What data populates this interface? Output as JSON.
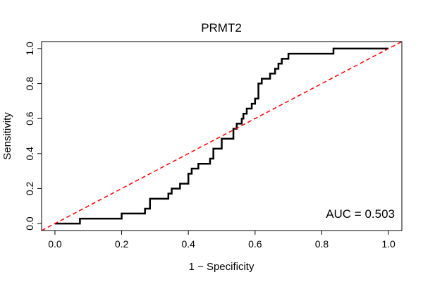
{
  "chart_data": {
    "type": "line",
    "title": "PRMT2",
    "xlabel": "1 − Specificity",
    "ylabel": "Sensitivity",
    "xlim": [
      -0.04,
      1.04
    ],
    "ylim": [
      -0.04,
      1.04
    ],
    "xticks": [
      0.0,
      0.2,
      0.4,
      0.6,
      0.8,
      1.0
    ],
    "xtick_labels": [
      "0.0",
      "0.2",
      "0.4",
      "0.6",
      "0.8",
      "1.0"
    ],
    "yticks": [
      0.0,
      0.2,
      0.4,
      0.6,
      0.8,
      1.0
    ],
    "ytick_labels": [
      "0.0",
      "0.2",
      "0.4",
      "0.6",
      "0.8",
      "1.0"
    ],
    "grid": false,
    "annotation": "AUC = 0.503",
    "series": [
      {
        "color": "#000000",
        "style": "step",
        "x": [
          0.0,
          0.075,
          0.075,
          0.2,
          0.2,
          0.27,
          0.27,
          0.285,
          0.285,
          0.34,
          0.34,
          0.35,
          0.35,
          0.375,
          0.375,
          0.4,
          0.4,
          0.41,
          0.41,
          0.43,
          0.43,
          0.465,
          0.465,
          0.475,
          0.475,
          0.5,
          0.5,
          0.535,
          0.535,
          0.545,
          0.545,
          0.56,
          0.56,
          0.565,
          0.565,
          0.575,
          0.575,
          0.59,
          0.59,
          0.6,
          0.6,
          0.61,
          0.61,
          0.62,
          0.62,
          0.645,
          0.645,
          0.66,
          0.66,
          0.67,
          0.67,
          0.68,
          0.68,
          0.7,
          0.7,
          0.835,
          0.835,
          1.0
        ],
        "y": [
          0.0,
          0.0,
          0.028,
          0.028,
          0.057,
          0.057,
          0.085,
          0.085,
          0.142,
          0.142,
          0.171,
          0.171,
          0.2,
          0.2,
          0.228,
          0.228,
          0.285,
          0.285,
          0.314,
          0.314,
          0.342,
          0.342,
          0.371,
          0.371,
          0.428,
          0.428,
          0.485,
          0.485,
          0.542,
          0.542,
          0.571,
          0.571,
          0.6,
          0.6,
          0.628,
          0.628,
          0.657,
          0.657,
          0.685,
          0.685,
          0.714,
          0.714,
          0.8,
          0.8,
          0.828,
          0.828,
          0.857,
          0.857,
          0.885,
          0.885,
          0.914,
          0.914,
          0.942,
          0.942,
          0.971,
          0.971,
          1.0,
          1.0
        ]
      },
      {
        "color": "#ff0000",
        "style": "dashed",
        "x": [
          -0.04,
          1.04
        ],
        "y": [
          -0.04,
          1.04
        ]
      }
    ]
  }
}
